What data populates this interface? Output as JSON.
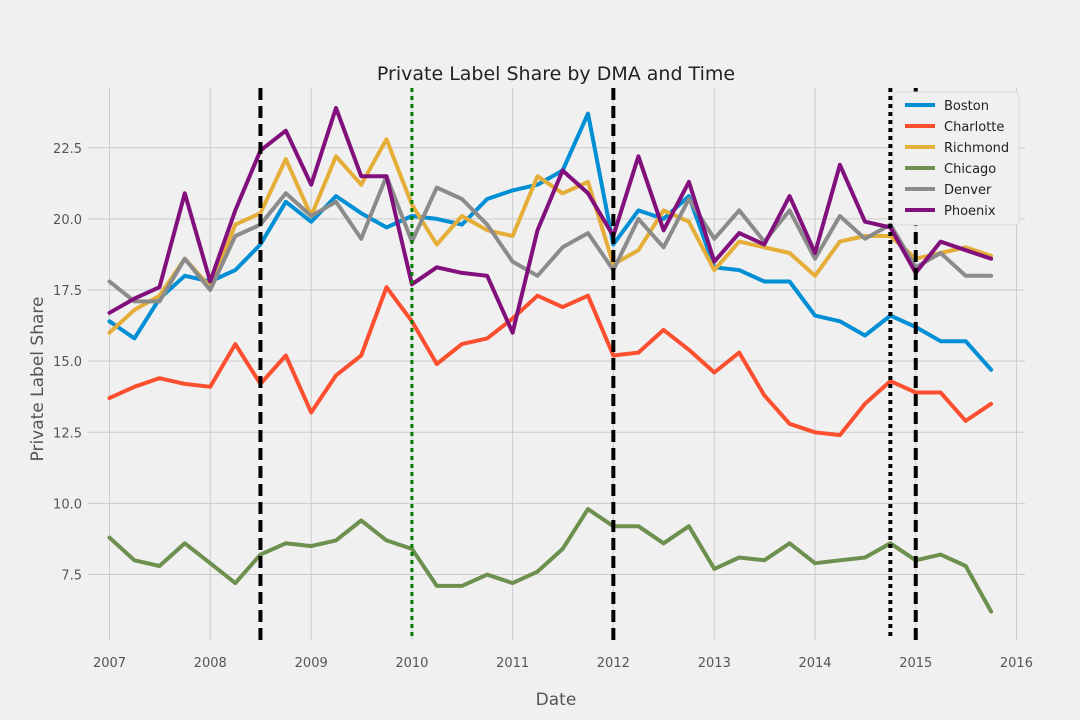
{
  "chart_data": {
    "type": "line",
    "title": "Private Label Share by DMA and Time",
    "xlabel": "Date",
    "ylabel": "Private Label Share",
    "xlim": [
      "2006-10-15",
      "2016-02-01"
    ],
    "ylim": [
      5.2,
      24.6
    ],
    "x_ticks": [
      "2007",
      "2008",
      "2009",
      "2010",
      "2011",
      "2012",
      "2013",
      "2014",
      "2015",
      "2016"
    ],
    "y_ticks": [
      "7.5",
      "10.0",
      "12.5",
      "15.0",
      "17.5",
      "20.0",
      "22.5"
    ],
    "y_tick_values": [
      7.5,
      10.0,
      12.5,
      15.0,
      17.5,
      20.0,
      22.5
    ],
    "grid": true,
    "legend_position": "top-right",
    "x": [
      "2007-01-01",
      "2007-04-01",
      "2007-07-01",
      "2007-10-01",
      "2008-01-01",
      "2008-04-01",
      "2008-07-01",
      "2008-10-01",
      "2009-01-01",
      "2009-04-01",
      "2009-07-01",
      "2009-10-01",
      "2010-01-01",
      "2010-04-01",
      "2010-07-01",
      "2010-10-01",
      "2011-01-01",
      "2011-04-01",
      "2011-07-01",
      "2011-10-01",
      "2012-01-01",
      "2012-04-01",
      "2012-07-01",
      "2012-10-01",
      "2013-01-01",
      "2013-04-01",
      "2013-07-01",
      "2013-10-01",
      "2014-01-01",
      "2014-04-01",
      "2014-07-01",
      "2014-10-01",
      "2015-01-01",
      "2015-04-01",
      "2015-07-01",
      "2015-10-01"
    ],
    "series": [
      {
        "name": "Boston",
        "color": "#008fd5",
        "values": [
          16.4,
          15.8,
          17.2,
          18.0,
          17.8,
          18.2,
          19.1,
          20.6,
          19.9,
          20.8,
          20.2,
          19.7,
          20.1,
          20.0,
          19.8,
          20.7,
          21.0,
          21.2,
          21.7,
          23.7,
          19.1,
          20.3,
          20.0,
          20.8,
          18.3,
          18.2,
          17.8,
          17.8,
          16.6,
          16.4,
          15.9,
          16.6,
          16.2,
          15.7,
          15.7,
          14.7
        ]
      },
      {
        "name": "Charlotte",
        "color": "#fc4f30",
        "values": [
          13.7,
          14.1,
          14.4,
          14.2,
          14.1,
          15.6,
          14.2,
          15.2,
          13.2,
          14.5,
          15.2,
          17.6,
          16.4,
          14.9,
          15.6,
          15.8,
          16.5,
          17.3,
          16.9,
          17.3,
          15.2,
          15.3,
          16.1,
          15.4,
          14.6,
          15.3,
          13.8,
          12.8,
          12.5,
          12.4,
          13.5,
          14.3,
          13.9,
          13.9,
          12.9,
          13.5
        ]
      },
      {
        "name": "Richmond",
        "color": "#e5ae38",
        "values": [
          16.0,
          16.8,
          17.3,
          18.6,
          17.6,
          19.8,
          20.2,
          22.1,
          20.1,
          22.2,
          21.2,
          22.8,
          20.5,
          19.1,
          20.1,
          19.6,
          19.4,
          21.5,
          20.9,
          21.3,
          18.4,
          18.9,
          20.3,
          19.9,
          18.2,
          19.2,
          19.0,
          18.8,
          18.0,
          19.2,
          19.4,
          19.4,
          18.6,
          18.8,
          19.0,
          18.7
        ]
      },
      {
        "name": "Chicago",
        "color": "#6d904f",
        "values": [
          8.8,
          8.0,
          7.8,
          8.6,
          7.9,
          7.2,
          8.2,
          8.6,
          8.5,
          8.7,
          9.4,
          8.7,
          8.4,
          7.1,
          7.1,
          7.5,
          7.2,
          7.6,
          8.4,
          9.8,
          9.2,
          9.2,
          8.6,
          9.2,
          7.7,
          8.1,
          8.0,
          8.6,
          7.9,
          8.0,
          8.1,
          8.6,
          8.0,
          8.2,
          7.8,
          6.2
        ]
      },
      {
        "name": "Denver",
        "color": "#8b8b8b",
        "values": [
          17.8,
          17.1,
          17.1,
          18.6,
          17.5,
          19.4,
          19.8,
          20.9,
          20.1,
          20.6,
          19.3,
          21.5,
          19.2,
          21.1,
          20.7,
          19.8,
          18.5,
          18.0,
          19.0,
          19.5,
          18.2,
          20.0,
          19.0,
          20.7,
          19.3,
          20.3,
          19.2,
          20.3,
          18.6,
          20.1,
          19.3,
          19.8,
          18.3,
          18.8,
          18.0,
          18.0
        ]
      },
      {
        "name": "Phoenix",
        "color": "#810f7c",
        "values": [
          16.7,
          17.2,
          17.6,
          20.9,
          17.8,
          20.3,
          22.4,
          23.1,
          21.2,
          23.9,
          21.5,
          21.5,
          17.7,
          18.3,
          18.1,
          18.0,
          16.0,
          19.6,
          21.7,
          20.9,
          19.4,
          22.2,
          19.6,
          21.3,
          18.5,
          19.5,
          19.1,
          20.8,
          18.8,
          21.9,
          19.9,
          19.7,
          18.1,
          19.2,
          18.9,
          18.6
        ]
      }
    ],
    "reference_lines": [
      {
        "date": "2008-07-01",
        "style": "dashed",
        "color": "#000000"
      },
      {
        "date": "2010-01-01",
        "style": "dotted",
        "color": "#008000"
      },
      {
        "date": "2012-01-01",
        "style": "dashed",
        "color": "#000000"
      },
      {
        "date": "2014-10-01",
        "style": "dotted",
        "color": "#000000"
      },
      {
        "date": "2015-01-01",
        "style": "dashed",
        "color": "#000000"
      }
    ]
  }
}
